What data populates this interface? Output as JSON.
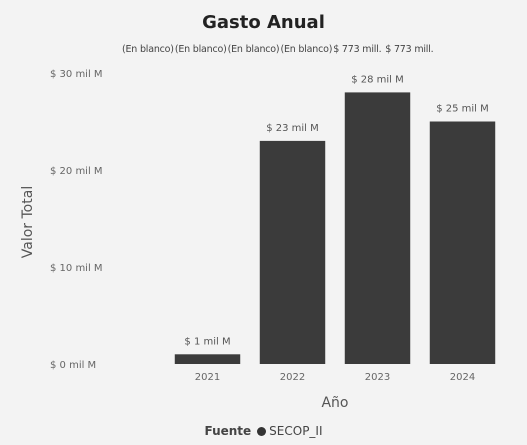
{
  "chart_data": {
    "type": "bar",
    "title": "Gasto Anual",
    "xlabel": "Año",
    "ylabel": "Valor Total",
    "categories": [
      "2021",
      "2022",
      "2023",
      "2024"
    ],
    "values": [
      1,
      23,
      28,
      25
    ],
    "data_labels": [
      "$ 1 mil M",
      "$ 23 mil M",
      "$ 28 mil M",
      "$ 25 mil M"
    ],
    "yticks": [
      {
        "value": 0,
        "label": "$ 0 mil M"
      },
      {
        "value": 10,
        "label": "$ 10 mil M"
      },
      {
        "value": 20,
        "label": "$ 20 mil M"
      },
      {
        "value": 30,
        "label": "$ 30 mil M"
      }
    ],
    "ylim": [
      0,
      30
    ],
    "grid": false,
    "legend": {
      "title": "Fuente",
      "entries": [
        "SECOP_II"
      ],
      "position": "bottom"
    },
    "overlay_labels": [
      "(En blanco)",
      "(En blanco)",
      "(En blanco)",
      "(En blanco)",
      "$ 773 mill.",
      "$ 773 mill."
    ],
    "colors": {
      "bar": "#3b3b3b",
      "background": "#f3f3f3"
    }
  }
}
